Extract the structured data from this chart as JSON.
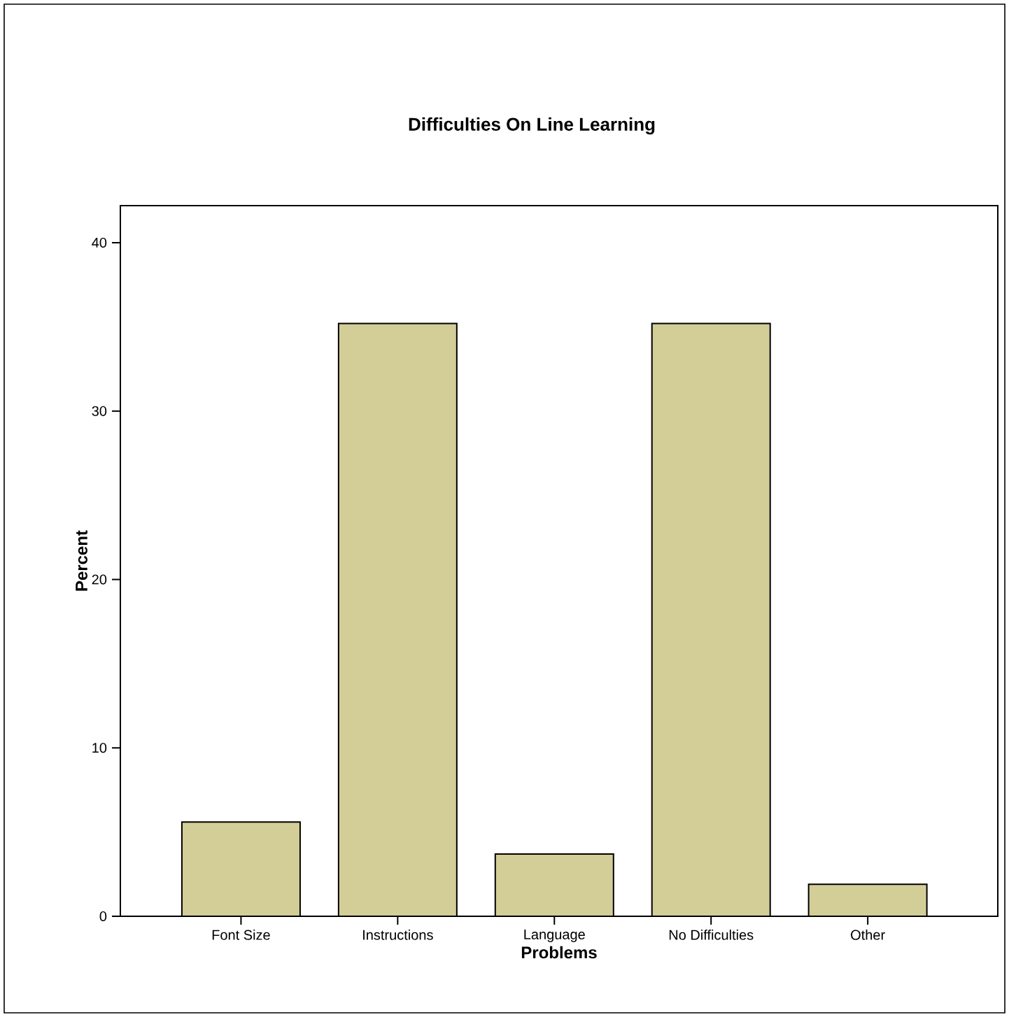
{
  "chart_data": {
    "type": "bar",
    "title": "Difficulties On Line  Learning",
    "xlabel": "Problems",
    "ylabel": "Percent",
    "categories": [
      "Font Size",
      "Instructions",
      "Language",
      "No Difficulties",
      "Other"
    ],
    "values": [
      5.6,
      35.2,
      3.7,
      35.2,
      1.9
    ],
    "color": "#d3cd98",
    "ylim": [
      0,
      42.2
    ],
    "yticks": [
      0,
      10,
      20,
      30,
      40
    ],
    "grid": false
  }
}
